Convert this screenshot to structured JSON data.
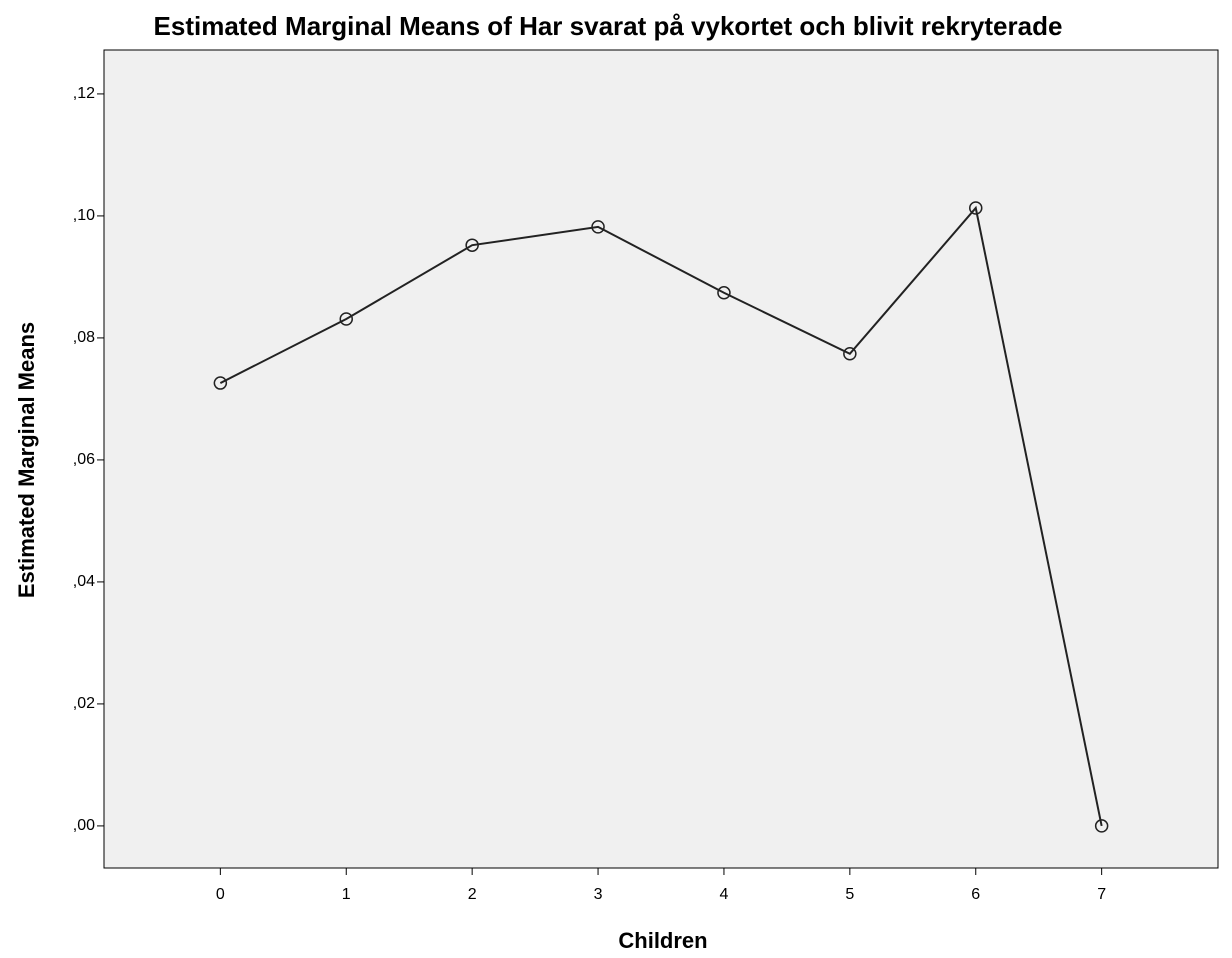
{
  "chart_data": {
    "type": "line",
    "title": "Estimated Marginal Means of Har svarat på vykortet och blivit rekryterade",
    "x_label": "Children",
    "y_label": "Estimated Marginal Means",
    "categories": [
      "0",
      "1",
      "2",
      "3",
      "4",
      "5",
      "6",
      "7"
    ],
    "values": [
      0.0726,
      0.0831,
      0.0952,
      0.0982,
      0.0874,
      0.0774,
      0.1013,
      0.0
    ],
    "color": "#222222",
    "ylim": [
      -0.0069,
      0.1272
    ],
    "yticks": [
      {
        "value": 0,
        "label": ",00"
      },
      {
        "value": 0.02,
        "label": ",02"
      },
      {
        "value": 0.04,
        "label": ",04"
      },
      {
        "value": 0.06,
        "label": ",06"
      },
      {
        "value": 0.08,
        "label": ",08"
      },
      {
        "value": 0.1,
        "label": ",10"
      },
      {
        "value": 0.12,
        "label": ",12"
      }
    ],
    "grid": false
  }
}
